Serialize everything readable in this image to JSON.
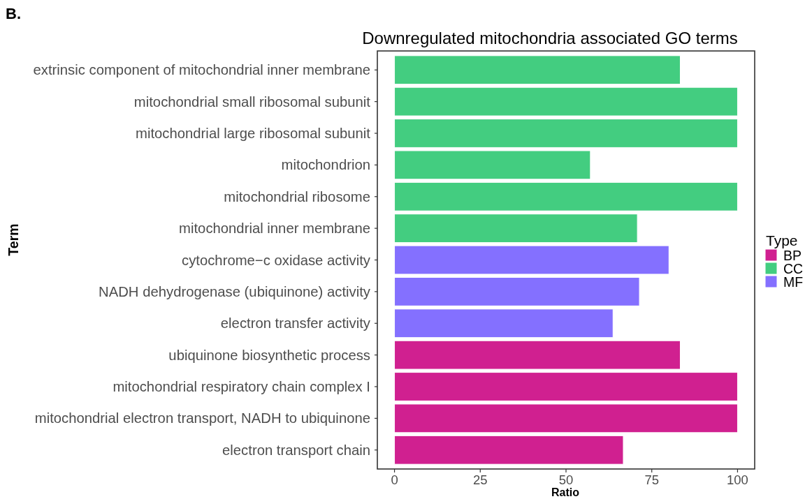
{
  "chart_data": {
    "type": "bar",
    "orientation": "horizontal",
    "title": "Downregulated mitochondria associated GO terms",
    "xlabel": "Ratio",
    "ylabel": "Term",
    "legend_title": "Type",
    "legend": "right",
    "annotations": [
      "B."
    ],
    "categories": [
      "extrinsic component of mitochondrial inner membrane",
      "mitochondrial small ribosomal subunit",
      "mitochondrial large ribosomal subunit",
      "mitochondrion",
      "mitochondrial ribosome",
      "mitochondrial inner membrane",
      "cytochrome−c oxidase activity",
      "NADH dehydrogenase (ubiquinone) activity",
      "electron transfer activity",
      "ubiquinone biosynthetic process",
      "mitochondrial respiratory chain complex I",
      "mitochondrial electron transport, NADH to ubiquinone",
      "electron transport chain"
    ],
    "series": [
      {
        "name": "BP",
        "color": "#d02090",
        "values": [
          null,
          null,
          null,
          null,
          null,
          null,
          null,
          null,
          null,
          83.3,
          100,
          100,
          66.7
        ]
      },
      {
        "name": "CC",
        "color": "#43cd80",
        "values": [
          83.3,
          100,
          100,
          57.1,
          100,
          70.8,
          null,
          null,
          null,
          null,
          null,
          null,
          null
        ]
      },
      {
        "name": "MF",
        "color": "#8470ff",
        "values": [
          null,
          null,
          null,
          null,
          null,
          null,
          80,
          71.4,
          63.7,
          null,
          null,
          null,
          null
        ]
      }
    ],
    "xlim": [
      -5,
      105
    ],
    "xticks": [
      0,
      25,
      50,
      75,
      100
    ]
  }
}
